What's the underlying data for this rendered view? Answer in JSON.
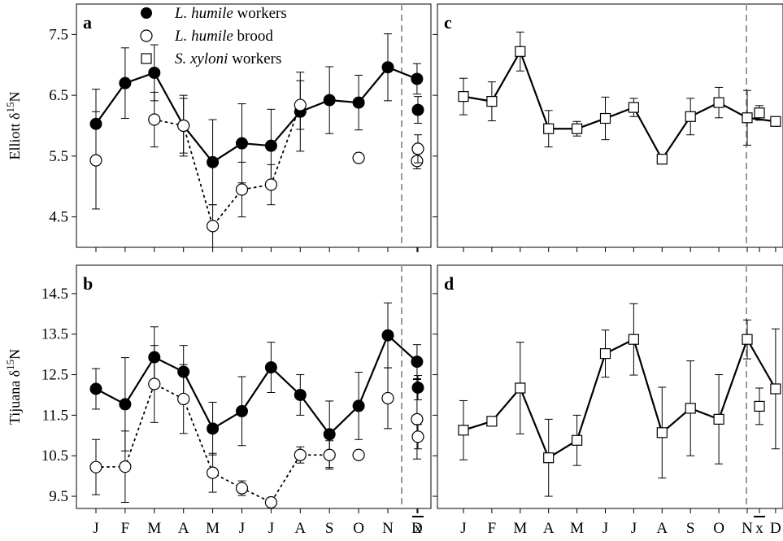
{
  "legend": {
    "items": [
      {
        "name_italic": "L. humile",
        "name_rest": " workers",
        "marker": "filled-circle"
      },
      {
        "name_italic": "L. humile",
        "name_rest": " brood",
        "marker": "open-circle"
      },
      {
        "name_italic": "S. xyloni",
        "name_rest": " workers",
        "marker": "open-square"
      }
    ]
  },
  "x_tick_labels": [
    "J",
    "F",
    "M",
    "A",
    "M",
    "J",
    "J",
    "A",
    "S",
    "O",
    "N",
    "D"
  ],
  "mean_label": "x",
  "chart_data": [
    {
      "type": "line",
      "panel": "a",
      "site": "Elliott",
      "ylabel_main": "Elliott δ",
      "ylabel_sup": "15",
      "ylabel_tail": "N",
      "ylim": [
        4.0,
        8.0
      ],
      "yticks": [
        4.5,
        5.5,
        6.5,
        7.5
      ],
      "ytick_labels": [
        "4.5",
        "5.5",
        "6.5",
        "7.5"
      ],
      "x": [
        "J",
        "F",
        "M",
        "A",
        "M",
        "J",
        "J",
        "A",
        "S",
        "O",
        "N",
        "D"
      ],
      "series": [
        {
          "name": "L. humile workers",
          "marker": "filled-circle",
          "line": "solid",
          "values": [
            6.03,
            6.7,
            6.87,
            6.0,
            5.4,
            5.71,
            5.67,
            6.23,
            6.42,
            6.38,
            6.96,
            6.77
          ],
          "err": [
            0.57,
            0.58,
            0.46,
            0.5,
            0.7,
            0.65,
            0.6,
            0.65,
            0.55,
            0.45,
            0.55,
            0.25
          ],
          "mean": 6.26,
          "mean_err": 0.22,
          "connect": [
            [
              0,
              11
            ]
          ]
        },
        {
          "name": "L. humile brood",
          "marker": "open-circle",
          "line": "dotted",
          "values": [
            5.43,
            null,
            6.1,
            6.0,
            4.35,
            4.95,
            5.03,
            6.34,
            null,
            5.47,
            null,
            5.42
          ],
          "err": [
            0.8,
            null,
            0.45,
            0.45,
            0.35,
            0.45,
            0.33,
            0.4,
            null,
            0.0,
            null,
            0.13
          ],
          "mean": 5.62,
          "mean_err": 0.23,
          "connect": [
            [
              2,
              7
            ]
          ]
        }
      ]
    },
    {
      "type": "line",
      "panel": "b",
      "site": "Tijuana",
      "ylabel_main": "Tijuana δ",
      "ylabel_sup": "15",
      "ylabel_tail": "N",
      "ylim": [
        9.2,
        15.2
      ],
      "yticks": [
        9.5,
        10.5,
        11.5,
        12.5,
        13.5,
        14.5
      ],
      "ytick_labels": [
        "9.5",
        "10.5",
        "11.5",
        "12.5",
        "13.5",
        "14.5"
      ],
      "x": [
        "J",
        "F",
        "M",
        "A",
        "M",
        "J",
        "J",
        "A",
        "S",
        "O",
        "N",
        "D"
      ],
      "series": [
        {
          "name": "L. humile workers",
          "marker": "filled-circle",
          "line": "solid",
          "values": [
            12.15,
            11.77,
            12.93,
            12.57,
            11.17,
            11.6,
            12.68,
            12.0,
            11.03,
            11.73,
            13.47,
            12.82
          ],
          "err": [
            0.5,
            1.15,
            0.75,
            0.65,
            0.65,
            0.85,
            0.62,
            0.5,
            0.82,
            0.83,
            0.8,
            0.42
          ],
          "mean": 12.18,
          "mean_err": 0.3,
          "connect": [
            [
              0,
              11
            ]
          ]
        },
        {
          "name": "L. humile brood",
          "marker": "open-circle",
          "line": "dotted",
          "values": [
            10.22,
            10.23,
            12.27,
            11.9,
            10.08,
            9.7,
            9.35,
            10.52,
            10.52,
            10.52,
            11.92,
            11.4
          ],
          "err": [
            0.68,
            0.88,
            0.95,
            0.85,
            0.48,
            0.18,
            0.0,
            0.2,
            0.35,
            0.0,
            0.75,
            0.98
          ],
          "mean": 10.97,
          "mean_err": 0.3,
          "connect": [
            [
              0,
              8
            ]
          ]
        }
      ]
    },
    {
      "type": "line",
      "panel": "c",
      "site": "Elliott",
      "ylim": [
        4.0,
        8.0
      ],
      "yticks": [
        4.5,
        5.5,
        6.5,
        7.5
      ],
      "x": [
        "J",
        "F",
        "M",
        "A",
        "M",
        "J",
        "J",
        "A",
        "S",
        "O",
        "N",
        "D"
      ],
      "series": [
        {
          "name": "S. xyloni workers",
          "marker": "open-square",
          "line": "solid",
          "values": [
            6.48,
            6.4,
            7.22,
            5.95,
            5.95,
            6.12,
            6.3,
            5.45,
            6.15,
            6.38,
            6.13,
            6.07
          ],
          "err": [
            0.3,
            0.32,
            0.32,
            0.3,
            0.12,
            0.35,
            0.15,
            0.08,
            0.3,
            0.25,
            0.45,
            0.0
          ],
          "mean": 6.21,
          "mean_err": 0.12,
          "connect": [
            [
              0,
              11
            ]
          ]
        }
      ]
    },
    {
      "type": "line",
      "panel": "d",
      "site": "Tijuana",
      "ylim": [
        9.2,
        15.2
      ],
      "yticks": [
        9.5,
        10.5,
        11.5,
        12.5,
        13.5,
        14.5
      ],
      "x": [
        "J",
        "F",
        "M",
        "A",
        "M",
        "J",
        "J",
        "A",
        "S",
        "O",
        "N",
        "D"
      ],
      "series": [
        {
          "name": "S. xyloni workers",
          "marker": "open-square",
          "line": "solid",
          "values": [
            11.13,
            11.35,
            12.17,
            10.45,
            10.88,
            13.02,
            13.37,
            11.07,
            11.67,
            11.4,
            13.37,
            12.15
          ],
          "err": [
            0.73,
            0.0,
            1.13,
            0.95,
            0.62,
            0.58,
            0.88,
            1.12,
            1.17,
            1.1,
            0.48,
            1.48
          ],
          "mean": 11.72,
          "mean_err": 0.45,
          "connect": [
            [
              0,
              11
            ]
          ]
        }
      ]
    }
  ]
}
